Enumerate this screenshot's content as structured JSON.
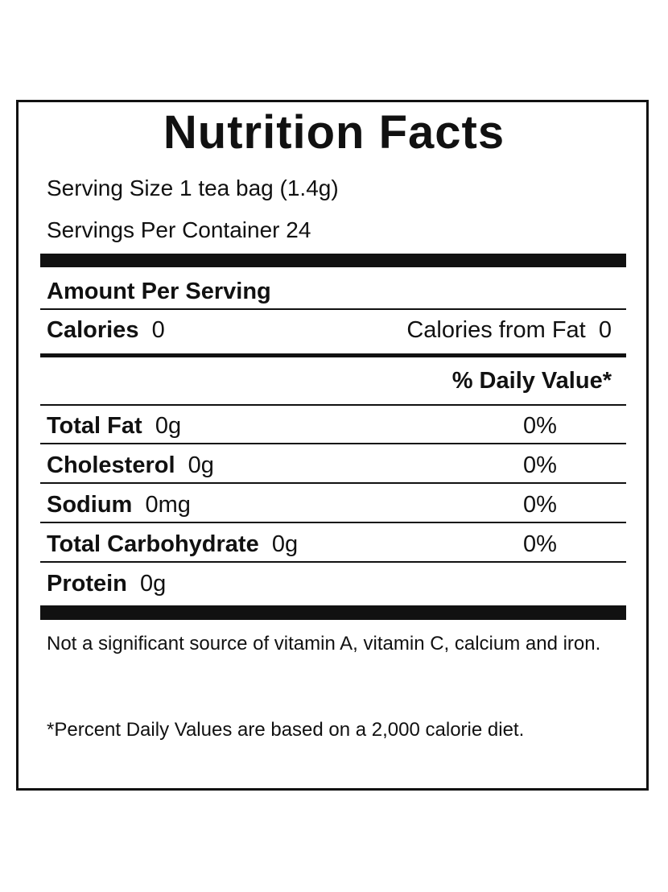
{
  "title": "Nutrition Facts",
  "serving_size": "Serving Size 1 tea bag (1.4g)",
  "servings_per_container": "Servings Per Container 24",
  "amount_per_serving": "Amount Per Serving",
  "calories": {
    "label": "Calories",
    "value": "0"
  },
  "calories_from_fat": {
    "label": "Calories from Fat",
    "value": "0"
  },
  "daily_value_header": "% Daily Value*",
  "nutrients": [
    {
      "name": "Total Fat",
      "amount": "0g",
      "daily_value": "0%"
    },
    {
      "name": "Cholesterol",
      "amount": "0g",
      "daily_value": "0%"
    },
    {
      "name": "Sodium",
      "amount": "0mg",
      "daily_value": "0%"
    },
    {
      "name": "Total Carbohydrate",
      "amount": "0g",
      "daily_value": "0%"
    },
    {
      "name": "Protein",
      "amount": "0g"
    }
  ],
  "footnotes": [
    "Not a significant source of vitamin A, vitamin C, calcium and iron.",
    "*Percent Daily Values are based on a 2,000 calorie diet."
  ]
}
